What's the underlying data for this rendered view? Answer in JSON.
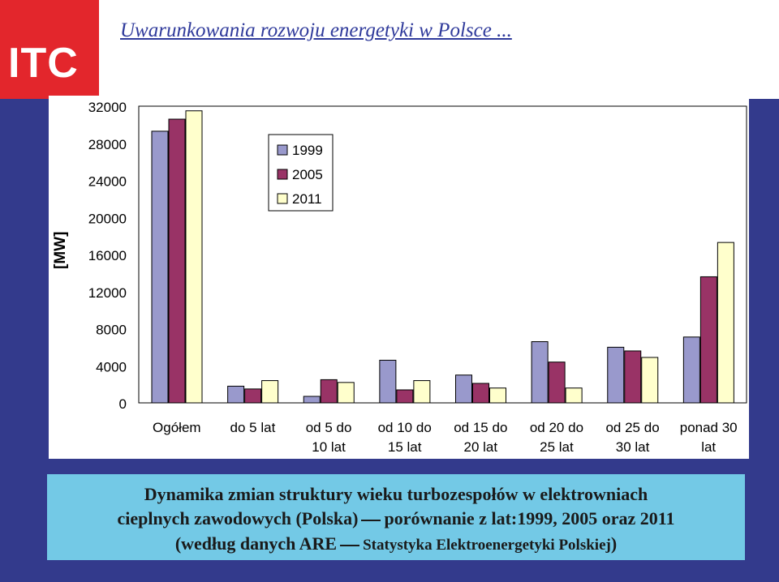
{
  "slide": {
    "logo_text": "ITC",
    "title": "Uwarunkowania rozwoju energetyki w Polsce ...",
    "caption": {
      "line1": "Dynamika zmian struktury wieku turbozespołów w elektrowniach",
      "line2_a": "cieplnych zawodowych (Polska)",
      "line2_b": "porównanie z lat:1999, 2005 oraz 2011",
      "line3_a": "(według danych ARE",
      "line3_b": "Statystyka Elektroenergetyki Polskiej",
      "line3_c": ")"
    }
  },
  "chart_data": {
    "type": "bar",
    "ylabel": "[MW]",
    "ylim": [
      0,
      32000
    ],
    "yticks": [
      0,
      4000,
      8000,
      12000,
      16000,
      20000,
      24000,
      28000,
      32000
    ],
    "categories": [
      [
        "Ogółem"
      ],
      [
        "do 5 lat"
      ],
      [
        "od 5 do",
        "10 lat"
      ],
      [
        "od 10 do",
        "15 lat"
      ],
      [
        "od 15 do",
        "20 lat"
      ],
      [
        "od 20 do",
        "25 lat"
      ],
      [
        "od 25 do",
        "30 lat"
      ],
      [
        "ponad 30",
        "lat"
      ]
    ],
    "series": [
      {
        "name": "1999",
        "color": "#9999cc",
        "values": [
          29300,
          1800,
          700,
          4600,
          3000,
          6600,
          6000,
          7100
        ]
      },
      {
        "name": "2005",
        "color": "#993366",
        "values": [
          30600,
          1500,
          2500,
          1400,
          2100,
          4400,
          5600,
          13600
        ]
      },
      {
        "name": "2011",
        "color": "#ffffcc",
        "values": [
          31500,
          2400,
          2200,
          2400,
          1600,
          1600,
          4900,
          17300
        ]
      }
    ],
    "legend_position": "top-left"
  }
}
